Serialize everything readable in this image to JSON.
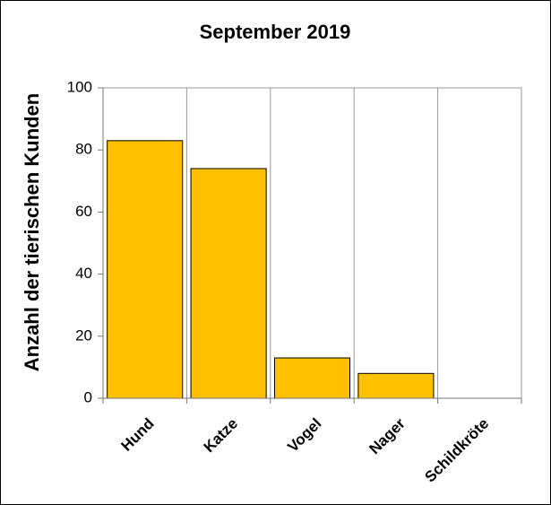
{
  "chart_data": {
    "type": "bar",
    "title": "September 2019",
    "y_label": "Anzahl der tierischen Kunden",
    "categories": [
      "Hund",
      "Katze",
      "Vogel",
      "Nager",
      "Schildkröte"
    ],
    "values": [
      83,
      74,
      13,
      8,
      0
    ],
    "color": "#ffc000",
    "ylim": [
      0,
      100
    ],
    "yticks": [
      0,
      20,
      40,
      60,
      80,
      100
    ]
  }
}
